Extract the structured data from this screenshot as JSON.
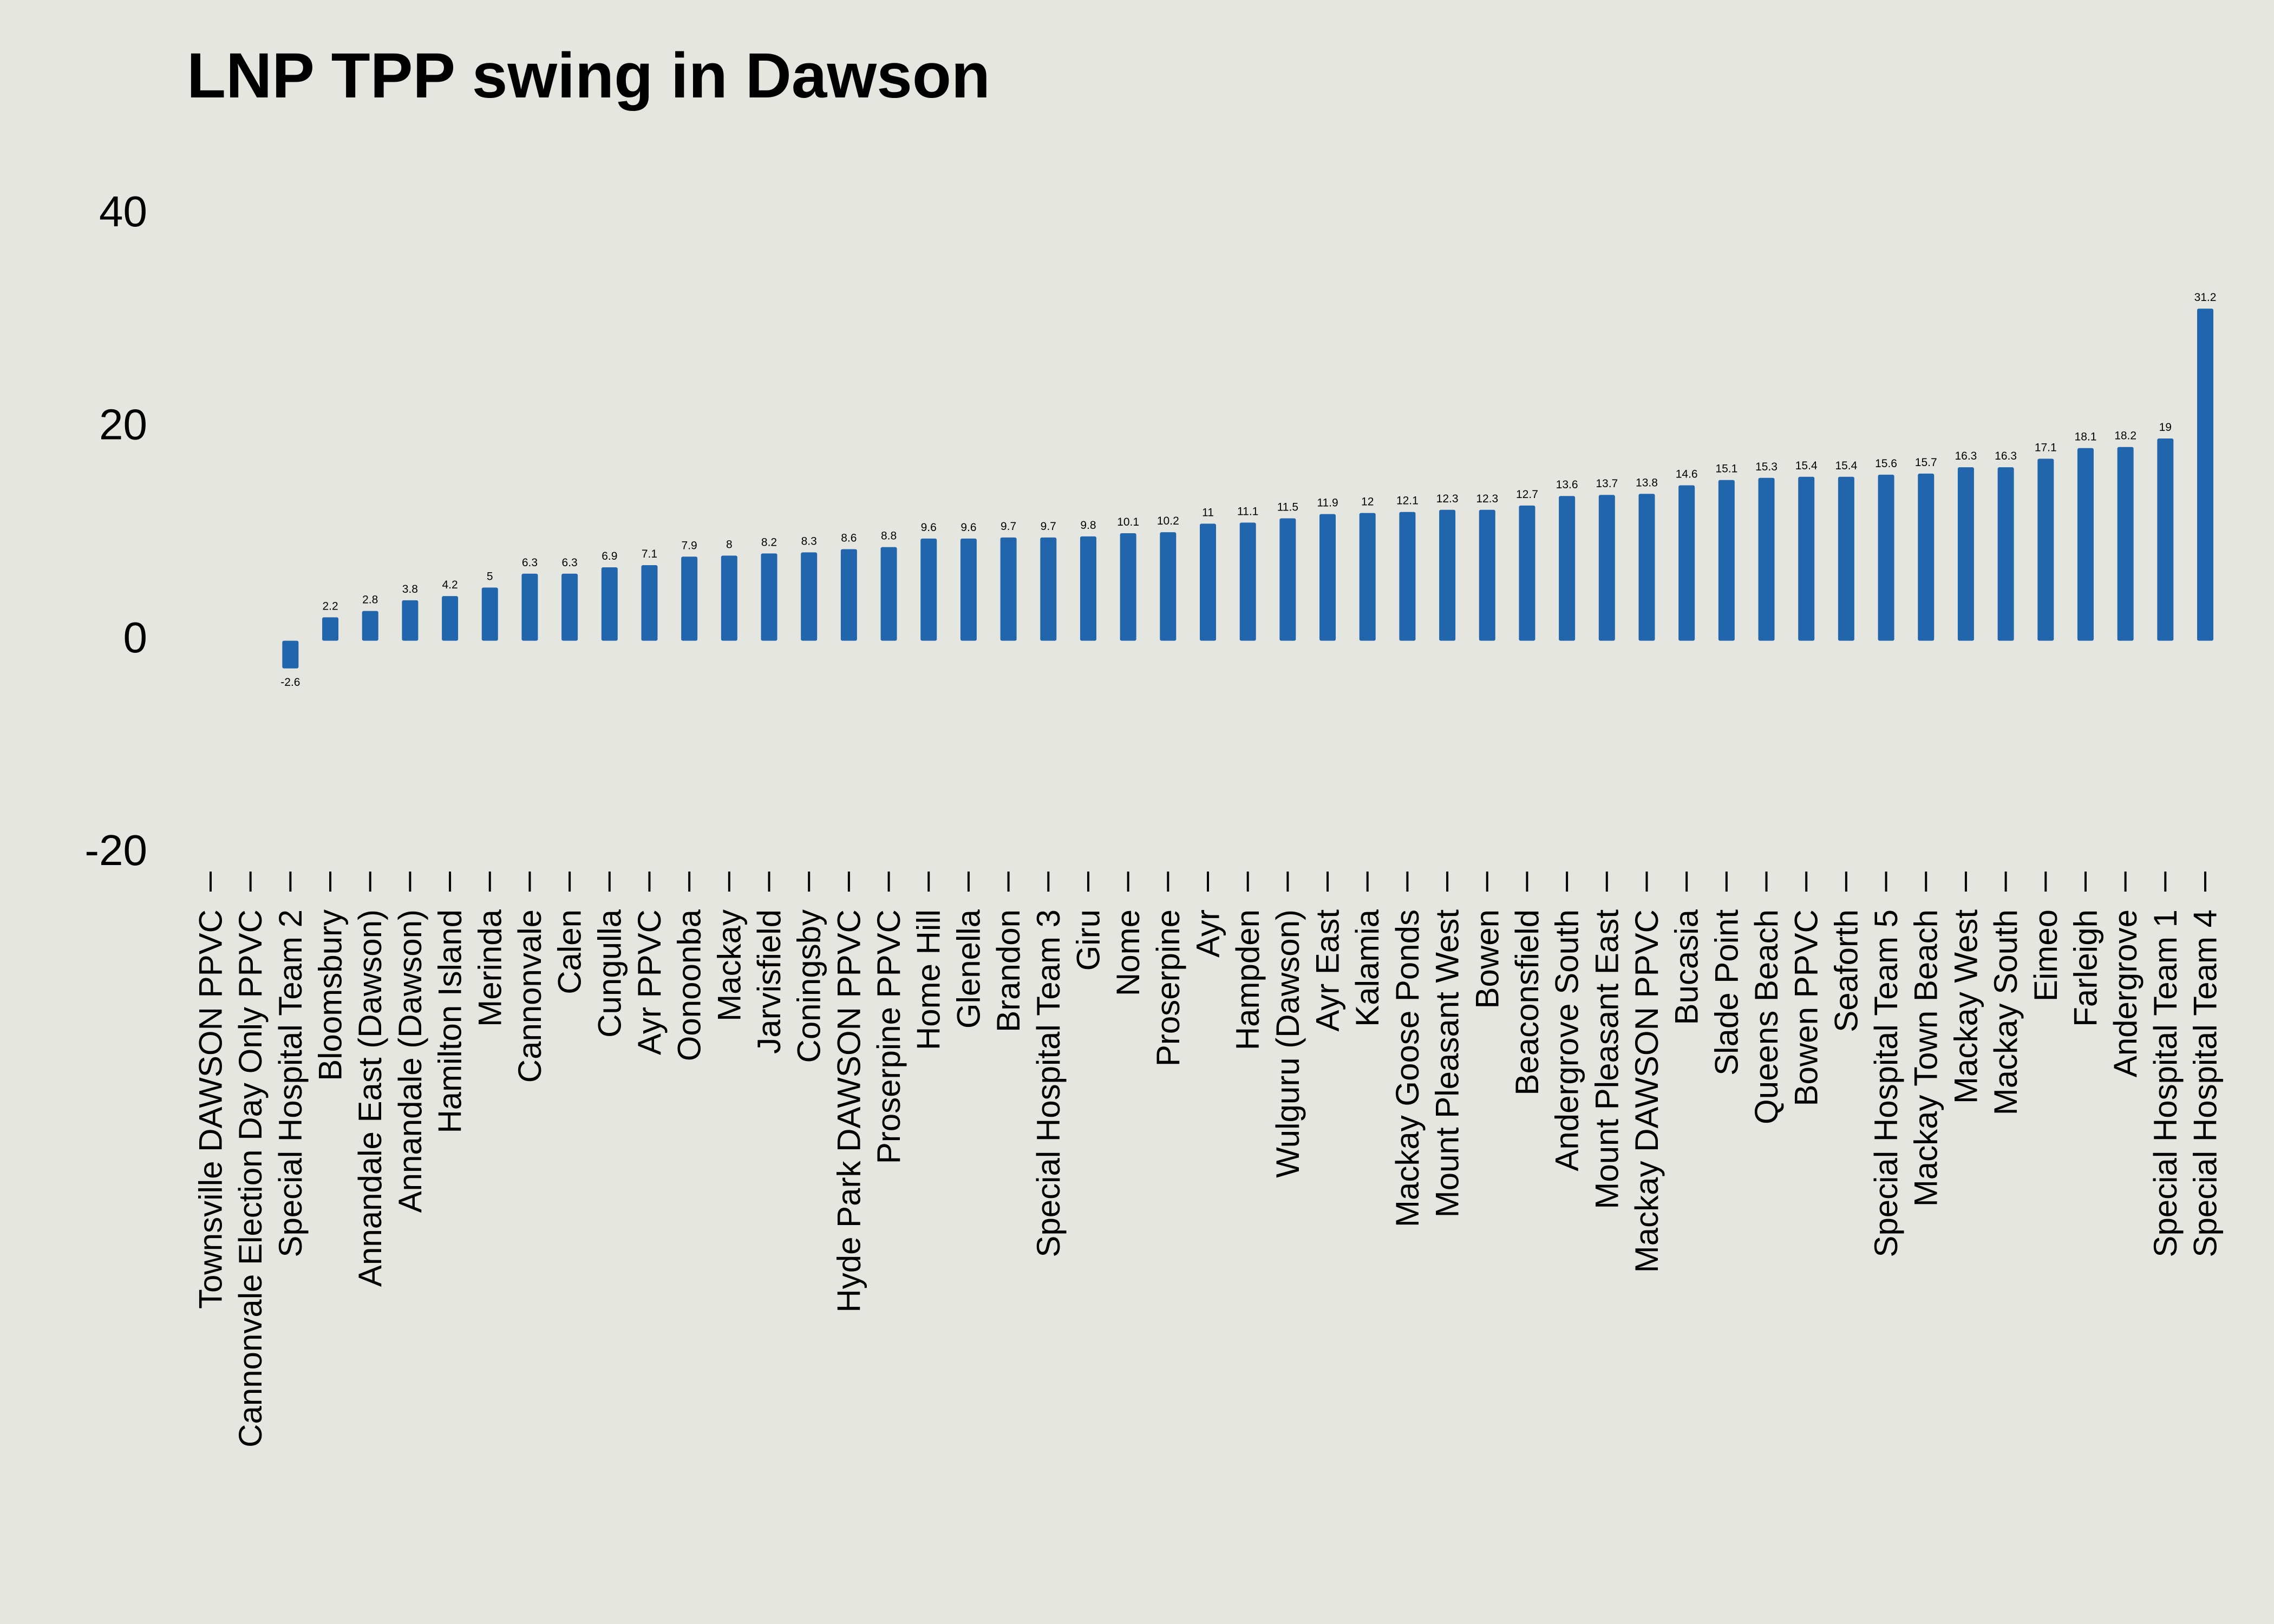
{
  "chart_data": {
    "type": "bar",
    "title": "LNP TPP swing in Dawson",
    "xlabel": "",
    "ylabel": "",
    "ylim": [
      -20,
      40
    ],
    "yticks": [
      -20,
      0,
      20,
      40
    ],
    "grid": false,
    "legend": "none",
    "bar_color": "#2166ac",
    "background_color": "#e6e6e0",
    "categories": [
      "Townsville DAWSON PPVC",
      "Cannonvale Election Day Only PPVC",
      "Special Hospital Team 2",
      "Bloomsbury",
      "Annandale East (Dawson)",
      "Annandale (Dawson)",
      "Hamilton Island",
      "Merinda",
      "Cannonvale",
      "Calen",
      "Cungulla",
      "Ayr PPVC",
      "Oonoonba",
      "Mackay",
      "Jarvisfield",
      "Coningsby",
      "Hyde Park DAWSON PPVC",
      "Proserpine PPVC",
      "Home Hill",
      "Glenella",
      "Brandon",
      "Special Hospital Team 3",
      "Giru",
      "Nome",
      "Proserpine",
      "Ayr",
      "Hampden",
      "Wulguru (Dawson)",
      "Ayr East",
      "Kalamia",
      "Mackay Goose Ponds",
      "Mount Pleasant West",
      "Bowen",
      "Beaconsfield",
      "Andergrove South",
      "Mount Pleasant East",
      "Mackay DAWSON PPVC",
      "Bucasia",
      "Slade Point",
      "Queens Beach",
      "Bowen PPVC",
      "Seaforth",
      "Special Hospital Team 5",
      "Mackay Town Beach",
      "Mackay West",
      "Mackay South",
      "Eimeo",
      "Farleigh",
      "Andergrove",
      "Special Hospital Team 1",
      "Special Hospital Team 4"
    ],
    "values": [
      null,
      null,
      -2.6,
      2.2,
      2.8,
      3.8,
      4.2,
      5,
      6.3,
      6.3,
      6.9,
      7.1,
      7.9,
      8,
      8.2,
      8.3,
      8.6,
      8.8,
      9.6,
      9.6,
      9.7,
      9.7,
      9.8,
      10.1,
      10.2,
      11,
      11.1,
      11.5,
      11.9,
      12,
      12.1,
      12.3,
      12.3,
      12.7,
      13.6,
      13.7,
      13.8,
      14.6,
      15.1,
      15.3,
      15.4,
      15.4,
      15.6,
      15.7,
      16.3,
      16.3,
      17.1,
      18.1,
      18.2,
      19,
      31.2
    ]
  }
}
